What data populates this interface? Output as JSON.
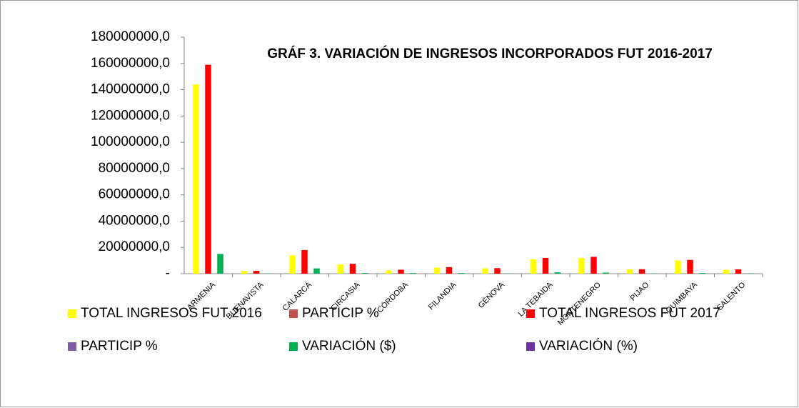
{
  "chart_data": {
    "type": "bar",
    "title": "GRÁF 3. VARIACIÓN DE INGRESOS INCORPORADOS FUT 2016-2017",
    "categories": [
      "ARMENIA",
      "BUENAVISTA",
      "CALARCÁ",
      "CIRCASIA",
      "CÓRDOBA",
      "FILANDIA",
      "GÉNOVA",
      "LA TEBAIDA",
      "MONTENEGRO",
      "PIJAO",
      "QUIMBAYA",
      "SALENTO"
    ],
    "series": [
      {
        "name": "TOTAL INGRESOS FUT 2016",
        "color": "#ffff00",
        "values": [
          144000000,
          2000000,
          14000000,
          7000000,
          2500000,
          4500000,
          4000000,
          11000000,
          12000000,
          3200000,
          10000000,
          3000000
        ]
      },
      {
        "name": "PARTICIP %",
        "color": "#c0504d",
        "values": [
          66,
          1,
          6,
          3,
          1,
          2,
          2,
          5,
          5,
          1,
          5,
          1
        ]
      },
      {
        "name": "TOTAL INGRESOS FUT 2017",
        "color": "#ff0000",
        "values": [
          159000000,
          2200000,
          18000000,
          7500000,
          3000000,
          5000000,
          4200000,
          12000000,
          12800000,
          3400000,
          10500000,
          3300000
        ]
      },
      {
        "name": "PARTICIP %",
        "color": "#7f5fa8",
        "values": [
          66,
          1,
          7,
          3,
          1,
          2,
          2,
          5,
          5,
          1,
          4,
          1
        ]
      },
      {
        "name": "VARIACIÓN ($)",
        "color": "#00b050",
        "values": [
          15000000,
          200000,
          4000000,
          500000,
          500000,
          500000,
          200000,
          1000000,
          800000,
          200000,
          500000,
          300000
        ]
      },
      {
        "name": "VARIACIÓN (%)",
        "color": "#7030a0",
        "values": [
          10,
          10,
          29,
          7,
          20,
          11,
          5,
          9,
          7,
          6,
          5,
          10
        ]
      }
    ],
    "ylim": [
      0,
      180000000
    ],
    "yticks": [
      {
        "value": 0,
        "label": "-"
      },
      {
        "value": 20000000,
        "label": "20000000,0"
      },
      {
        "value": 40000000,
        "label": "40000000,0"
      },
      {
        "value": 60000000,
        "label": "60000000,0"
      },
      {
        "value": 80000000,
        "label": "80000000,0"
      },
      {
        "value": 100000000,
        "label": "100000000,0"
      },
      {
        "value": 120000000,
        "label": "120000000,0"
      },
      {
        "value": 140000000,
        "label": "140000000,0"
      },
      {
        "value": 160000000,
        "label": "160000000,0"
      },
      {
        "value": 180000000,
        "label": "180000000,0"
      }
    ]
  }
}
